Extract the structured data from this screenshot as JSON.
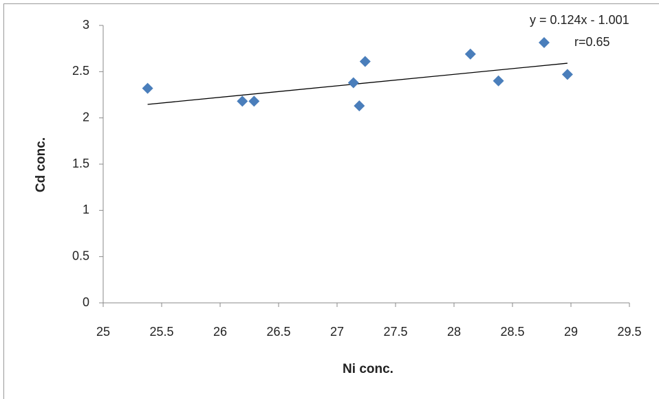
{
  "chart_data": {
    "type": "scatter",
    "annotation": "y = 0.124x - 1.001",
    "x_label": "Ni conc.",
    "y_label": "Cd conc.",
    "series": [
      {
        "name": "r=0.65",
        "color": "#4a7ebb",
        "x": [
          25.38,
          26.19,
          26.29,
          27.14,
          27.19,
          27.24,
          28.14,
          28.38,
          28.97
        ],
        "values": [
          2.32,
          2.18,
          2.18,
          2.38,
          2.13,
          2.61,
          2.69,
          2.4,
          2.47
        ]
      }
    ],
    "trendline": {
      "x": [
        25.38,
        28.97
      ],
      "y": [
        2.146,
        2.591
      ],
      "color": "#000000"
    },
    "xlim": [
      25,
      29.5
    ],
    "xticks": [
      25,
      25.5,
      26,
      26.5,
      27,
      27.5,
      28,
      28.5,
      29,
      29.5
    ],
    "ylim": [
      0,
      3
    ],
    "yticks": [
      0,
      0.5,
      1,
      1.5,
      2,
      2.5,
      3
    ],
    "grid": false
  }
}
